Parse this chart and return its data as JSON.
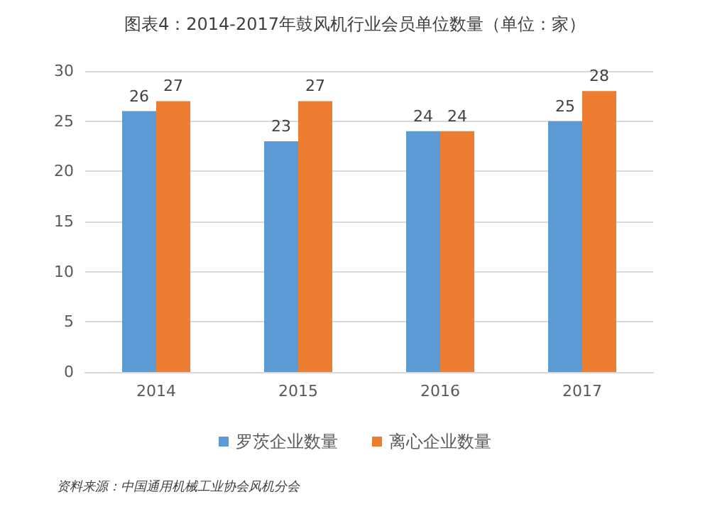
{
  "chart_data": {
    "type": "bar",
    "title": "图表4：2014-2017年鼓风机行业会员单位数量（单位：家）",
    "categories": [
      "2014",
      "2015",
      "2016",
      "2017"
    ],
    "series": [
      {
        "name": "罗茨企业数量",
        "color": "#5b9bd5",
        "values": [
          26,
          23,
          24,
          25
        ]
      },
      {
        "name": "离心企业数量",
        "color": "#ed7d31",
        "values": [
          27,
          27,
          24,
          28
        ]
      }
    ],
    "ylim": [
      0,
      30
    ],
    "yticks": [
      0,
      5,
      10,
      15,
      20,
      25,
      30
    ],
    "grid": "y",
    "legend": "bottom",
    "data_labels": true,
    "annotations": [
      "资料来源：中国通用机械工业协会风机分会"
    ]
  }
}
